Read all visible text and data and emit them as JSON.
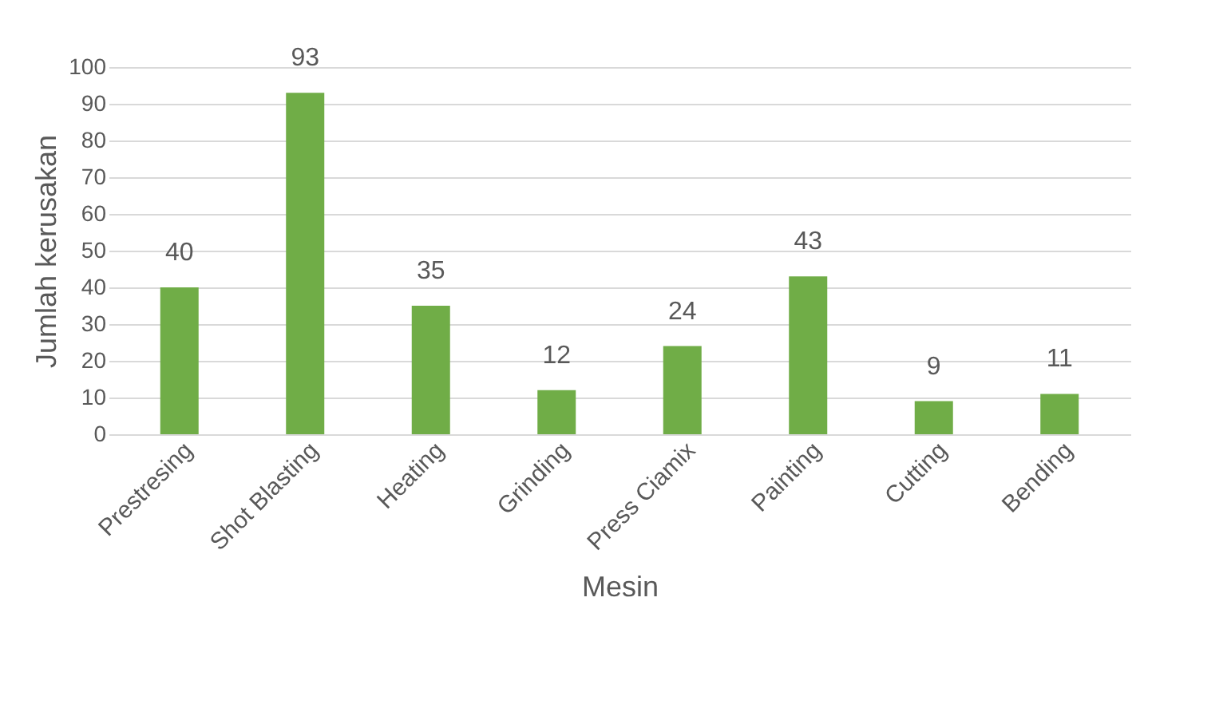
{
  "chart_data": {
    "type": "bar",
    "xlabel": "Mesin",
    "ylabel": "Jumlah kerusakan",
    "categories": [
      "Prestresing",
      "Shot Blasting",
      "Heating",
      "Grinding",
      "Press Ciamix",
      "Painting",
      "Cutting",
      "Bending"
    ],
    "values": [
      40,
      93,
      35,
      12,
      24,
      43,
      9,
      11
    ],
    "color": "#70ad47",
    "ylim": [
      0,
      100
    ],
    "yticks": [
      0,
      10,
      20,
      30,
      40,
      50,
      60,
      70,
      80,
      90,
      100
    ],
    "grid": "y",
    "data_labels": true
  }
}
